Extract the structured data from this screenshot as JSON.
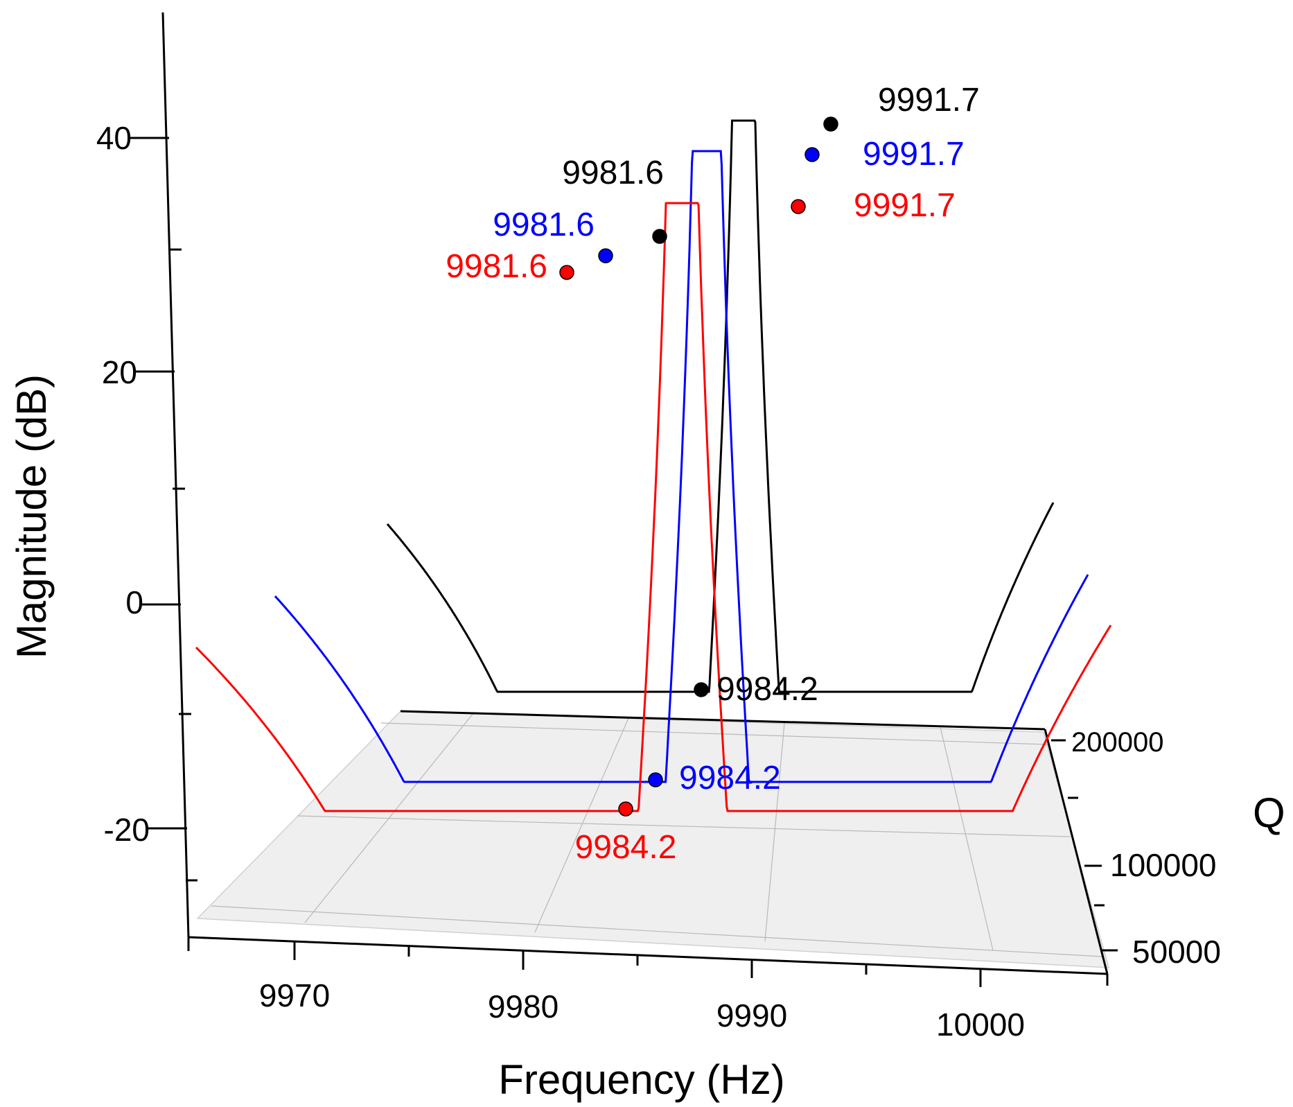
{
  "chart_data": {
    "type": "line",
    "projection": "3d",
    "xlabel": "Frequency (Hz)",
    "ylabel": "Q",
    "zlabel": "Magnitude (dB)",
    "x_ticks": [
      "9970",
      "9980",
      "9990",
      "10000"
    ],
    "y_ticks": [
      "50000",
      "100000",
      "200000"
    ],
    "z_ticks": [
      "-20",
      "0",
      "20",
      "40"
    ],
    "xlim": [
      9965,
      10005
    ],
    "zlim": [
      -30,
      50
    ],
    "series": [
      {
        "name": "Q = 50000",
        "color": "#ff0000",
        "resonance_1": 9981.6,
        "antiresonance": 9984.2,
        "resonance_2": 9991.7,
        "labels": [
          "9981.6",
          "9984.2",
          "9991.7"
        ]
      },
      {
        "name": "Q = 100000",
        "color": "#0000ff",
        "resonance_1": 9981.6,
        "antiresonance": 9984.2,
        "resonance_2": 9991.7,
        "labels": [
          "9981.6",
          "9984.2",
          "9991.7"
        ]
      },
      {
        "name": "Q = 200000",
        "color": "#000000",
        "resonance_1": 9981.6,
        "antiresonance": 9984.2,
        "resonance_2": 9991.7,
        "labels": [
          "9981.6",
          "9984.2",
          "9991.7"
        ]
      }
    ]
  }
}
